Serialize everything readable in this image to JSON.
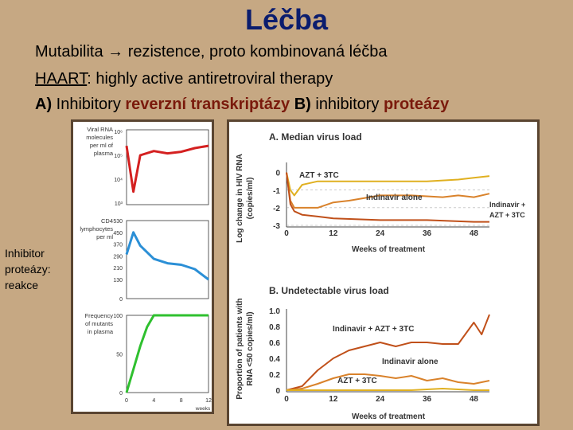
{
  "header": {
    "title": "Léčba"
  },
  "bullets": {
    "line1": "Mutabilita → rezistence, proto kombinovaná léčba",
    "line2_abbr": "HAART",
    "line2_rest": ": highly active antiretroviral therapy",
    "line3_a": "A)",
    "line3_b": " Inhibitory ",
    "line3_c": "reverzní transkriptázy",
    "line3_d": " B)",
    "line3_e": " inhibitory ",
    "line3_f": "proteázy"
  },
  "side_note": {
    "line1": "Inhibitor",
    "line2": "proteázy:",
    "line3": "reakce"
  },
  "left_figure": {
    "panel1_label": [
      "Viral RNA",
      "molecules",
      "per ml of",
      "plasma"
    ],
    "panel1_ticks": [
      "10⁶",
      "10⁵",
      "10⁴",
      "10³"
    ],
    "panel2_label": [
      "CD4",
      "lymphocytes",
      "per ml"
    ],
    "panel2_ticks": [
      "530",
      "450",
      "370",
      "290",
      "210",
      "130",
      "0"
    ],
    "panel3_label": [
      "Frequency",
      "of mutants",
      "in plasma"
    ],
    "panel3_ticks": [
      "100",
      "50",
      "0"
    ],
    "x_ticks": [
      "0",
      "4",
      "8",
      "12"
    ],
    "x_unit": "weeks",
    "colors": {
      "panel1": "#d42020",
      "panel2": "#2b8fd6",
      "panel3": "#2fc02f"
    }
  },
  "right_figure": {
    "chart_a": {
      "title": "A.  Median virus load",
      "ylabel": [
        "Log change in HIV RNA",
        "(copies/ml)"
      ],
      "yticks": [
        "0",
        "-1",
        "-2",
        "-3"
      ],
      "xticks": [
        "0",
        "12",
        "24",
        "36",
        "48"
      ],
      "xlabel": "Weeks of treatment",
      "label_azt": "AZT + 3TC",
      "label_indinavir": "Indinavir alone",
      "label_combo_1": "Indinavir +",
      "label_combo_2": "AZT + 3TC"
    },
    "chart_b": {
      "title": "B.  Undetectable virus load",
      "ylabel": [
        "Proportion of patients with",
        "RNA <50 copies/ml)"
      ],
      "yticks": [
        "1.0",
        "0.8",
        "0.6",
        "0.4",
        "0.2",
        "0"
      ],
      "xticks": [
        "0",
        "12",
        "24",
        "36",
        "48"
      ],
      "xlabel": "Weeks of treatment",
      "label_combo": "Indinavir + AZT + 3TC",
      "label_indinavir": "Indinavir alone",
      "label_azt": "AZT + 3TC"
    },
    "colors": {
      "azt": "#e0b020",
      "indinavir": "#d9822b",
      "combo": "#c0501a"
    }
  },
  "chart_data": [
    {
      "type": "line",
      "title": "A.  Median virus load",
      "xlabel": "Weeks of treatment",
      "ylabel": "Log change in HIV RNA (copies/ml)",
      "xlim": [
        0,
        52
      ],
      "ylim": [
        -3,
        0.3
      ],
      "series": [
        {
          "name": "AZT + 3TC",
          "x": [
            0,
            1,
            2,
            4,
            8,
            12,
            20,
            28,
            36,
            44,
            48,
            52
          ],
          "y": [
            0,
            -1.0,
            -1.3,
            -0.7,
            -0.5,
            -0.5,
            -0.5,
            -0.5,
            -0.5,
            -0.4,
            -0.3,
            -0.2
          ]
        },
        {
          "name": "Indinavir alone",
          "x": [
            0,
            1,
            2,
            4,
            8,
            12,
            16,
            24,
            32,
            40,
            44,
            48,
            52
          ],
          "y": [
            0,
            -1.6,
            -2.0,
            -2.0,
            -2.0,
            -1.7,
            -1.6,
            -1.3,
            -1.3,
            -1.4,
            -1.3,
            -1.4,
            -1.2
          ]
        },
        {
          "name": "Indinavir + AZT + 3TC",
          "x": [
            0,
            1,
            2,
            4,
            8,
            12,
            24,
            36,
            48,
            52
          ],
          "y": [
            0,
            -1.8,
            -2.2,
            -2.4,
            -2.5,
            -2.6,
            -2.7,
            -2.7,
            -2.8,
            -2.8
          ]
        }
      ]
    },
    {
      "type": "line",
      "title": "B.  Undetectable virus load",
      "xlabel": "Weeks of treatment",
      "ylabel": "Proportion of patients with RNA <50 copies/ml)",
      "xlim": [
        0,
        52
      ],
      "ylim": [
        0,
        1.0
      ],
      "series": [
        {
          "name": "Indinavir + AZT + 3TC",
          "x": [
            0,
            4,
            8,
            12,
            16,
            20,
            24,
            28,
            32,
            36,
            40,
            44,
            48,
            50,
            52
          ],
          "y": [
            0,
            0.05,
            0.25,
            0.4,
            0.5,
            0.55,
            0.6,
            0.55,
            0.6,
            0.6,
            0.58,
            0.58,
            0.85,
            0.7,
            0.95
          ]
        },
        {
          "name": "Indinavir alone",
          "x": [
            0,
            4,
            8,
            12,
            16,
            20,
            24,
            28,
            32,
            36,
            40,
            44,
            48,
            52
          ],
          "y": [
            0,
            0.02,
            0.08,
            0.15,
            0.2,
            0.2,
            0.18,
            0.15,
            0.18,
            0.12,
            0.15,
            0.1,
            0.08,
            0.12
          ]
        },
        {
          "name": "AZT + 3TC",
          "x": [
            0,
            8,
            16,
            24,
            32,
            40,
            48,
            52
          ],
          "y": [
            0,
            0,
            0,
            0,
            0,
            0.02,
            0,
            0
          ]
        }
      ]
    },
    {
      "type": "line",
      "xlabel": "weeks",
      "ylabel": "Viral RNA molecules per ml of plasma",
      "log_scale_y": true,
      "xlim": [
        0,
        12
      ],
      "ylim": [
        1000,
        1000000
      ],
      "series": [
        {
          "x": [
            0,
            1,
            2,
            4,
            6,
            8,
            10,
            12
          ],
          "y": [
            250000,
            3000,
            100000,
            150000,
            120000,
            140000,
            200000,
            250000
          ]
        }
      ]
    },
    {
      "type": "line",
      "xlabel": "weeks",
      "ylabel": "CD4 lymphocytes per ml",
      "xlim": [
        0,
        12
      ],
      "ylim": [
        0,
        530
      ],
      "series": [
        {
          "x": [
            0,
            1,
            2,
            4,
            6,
            8,
            10,
            12
          ],
          "y": [
            300,
            450,
            360,
            270,
            240,
            230,
            200,
            130
          ]
        }
      ]
    },
    {
      "type": "line",
      "xlabel": "weeks",
      "ylabel": "Frequency of mutants in plasma",
      "xlim": [
        0,
        12
      ],
      "ylim": [
        0,
        100
      ],
      "series": [
        {
          "x": [
            0,
            1,
            2,
            3,
            4,
            8,
            12
          ],
          "y": [
            0,
            30,
            60,
            85,
            100,
            100,
            100
          ]
        }
      ]
    }
  ]
}
